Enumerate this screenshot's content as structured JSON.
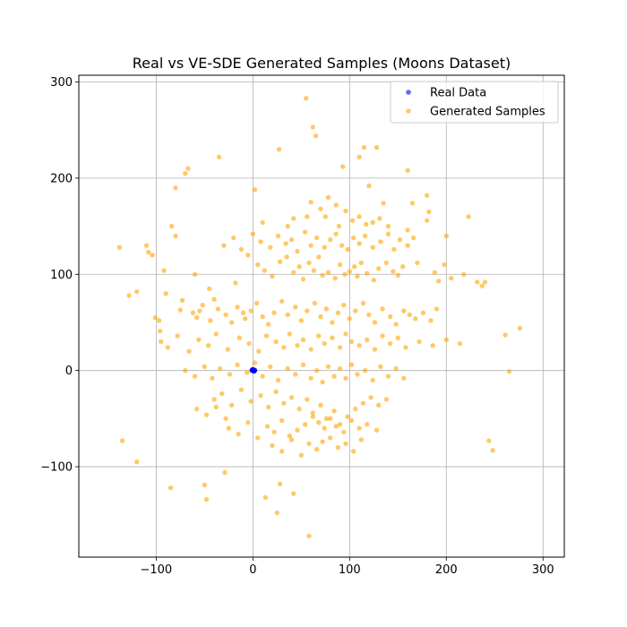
{
  "chart_data": {
    "type": "scatter",
    "title": "Real vs VE-SDE Generated Samples (Moons Dataset)",
    "xlabel": "",
    "ylabel": "",
    "xlim": [
      -180,
      322
    ],
    "ylim": [
      -194,
      307
    ],
    "xticks": [
      -100,
      0,
      100,
      200,
      300
    ],
    "yticks": [
      -100,
      0,
      100,
      200,
      300
    ],
    "xtick_labels": [
      "−100",
      "0",
      "100",
      "200",
      "300"
    ],
    "ytick_labels": [
      "−100",
      "0",
      "100",
      "200",
      "300"
    ],
    "grid": true,
    "legend_position": "top-right",
    "series": [
      {
        "name": "Real Data",
        "color": "#0000ff",
        "opacity": 0.6,
        "marker": "circle",
        "x": [
          -0.9,
          -0.6,
          -0.3,
          0.0,
          0.3,
          0.6,
          0.9,
          0.2,
          0.5,
          0.8,
          1.1,
          1.4,
          1.7,
          1.9,
          -1.0,
          1.0,
          0.5,
          1.5,
          -0.5,
          2.0
        ],
        "y": [
          0.4,
          0.8,
          0.95,
          1.0,
          0.95,
          0.8,
          0.4,
          -0.1,
          -0.3,
          -0.45,
          -0.5,
          -0.45,
          -0.3,
          0.2,
          0.0,
          0.0,
          0.85,
          -0.4,
          0.87,
          0.5
        ]
      },
      {
        "name": "Generated Samples",
        "color": "#ffa500",
        "opacity": 0.6,
        "marker": "circle",
        "x": [
          55,
          62,
          65,
          128,
          110,
          115,
          -35,
          27,
          93,
          -67,
          -70,
          -80,
          2,
          120,
          160,
          165,
          180,
          135,
          182,
          223,
          240,
          276,
          261,
          265,
          248,
          244,
          -138,
          -135,
          -97,
          -96,
          -101,
          58,
          42,
          -85,
          -50,
          -48,
          -29,
          13,
          25,
          28,
          -120,
          -110,
          -108,
          -92,
          -90,
          -75,
          -73,
          -60,
          -45,
          -40,
          -55,
          -18,
          -10,
          -5,
          5,
          12,
          20,
          28,
          35,
          42,
          48,
          52,
          58,
          63,
          68,
          72,
          78,
          85,
          90,
          95,
          100,
          105,
          108,
          112,
          118,
          125,
          130,
          138,
          145,
          150,
          155,
          170,
          188,
          192,
          198,
          205,
          218,
          232,
          237,
          -62,
          -58,
          -52,
          -44,
          -36,
          -28,
          -22,
          -16,
          -8,
          -2,
          4,
          10,
          16,
          22,
          30,
          36,
          44,
          50,
          56,
          64,
          70,
          76,
          82,
          88,
          94,
          100,
          106,
          114,
          120,
          126,
          134,
          142,
          148,
          156,
          162,
          168,
          176,
          184,
          190,
          -30,
          -20,
          -12,
          0,
          8,
          18,
          26,
          34,
          40,
          46,
          54,
          60,
          66,
          74,
          80,
          86,
          92,
          98,
          104,
          110,
          116,
          124,
          132,
          140,
          146,
          152,
          160,
          166,
          -95,
          -88,
          -78,
          -66,
          -56,
          -46,
          -38,
          -26,
          -14,
          -4,
          6,
          14,
          24,
          32,
          38,
          46,
          52,
          60,
          68,
          74,
          82,
          90,
          96,
          102,
          110,
          118,
          126,
          134,
          142,
          150,
          158,
          172,
          186,
          200,
          214,
          -70,
          -60,
          -50,
          -42,
          -34,
          -24,
          -16,
          -6,
          2,
          10,
          18,
          26,
          36,
          44,
          52,
          60,
          66,
          72,
          78,
          84,
          90,
          96,
          102,
          108,
          116,
          124,
          132,
          140,
          148,
          156,
          -40,
          -32,
          -22,
          -12,
          -2,
          8,
          16,
          24,
          32,
          40,
          48,
          56,
          62,
          70,
          76,
          84,
          90,
          98,
          106,
          114,
          122,
          130,
          138,
          -25,
          -15,
          -5,
          5,
          15,
          22,
          30,
          38,
          46,
          54,
          62,
          68,
          74,
          80,
          86,
          94,
          102,
          110,
          118,
          128,
          20,
          30,
          40,
          50,
          58,
          66,
          72,
          80,
          88,
          96,
          104,
          112,
          -58,
          -48,
          -38,
          -28,
          60,
          70,
          78,
          86,
          96,
          110,
          124,
          140,
          160,
          180,
          200,
          -128,
          -120,
          -104,
          -84,
          -80,
          10,
          36,
          56,
          42,
          75,
          89,
          103,
          117,
          131
        ],
        "y": [
          283,
          253,
          244,
          232,
          222,
          232,
          222,
          230,
          212,
          210,
          205,
          190,
          188,
          192,
          208,
          174,
          182,
          174,
          165,
          160,
          92,
          44,
          37,
          -1,
          -83,
          -73,
          128,
          -73,
          52,
          41,
          55,
          -172,
          -128,
          -122,
          -119,
          -134,
          -106,
          -132,
          -148,
          -118,
          -95,
          130,
          123,
          104,
          80,
          63,
          73,
          100,
          85,
          74,
          62,
          91,
          60,
          120,
          110,
          104,
          98,
          113,
          118,
          102,
          108,
          95,
          112,
          104,
          118,
          99,
          102,
          96,
          110,
          100,
          103,
          108,
          98,
          112,
          101,
          94,
          106,
          112,
          103,
          99,
          108,
          112,
          102,
          93,
          110,
          96,
          100,
          92,
          88,
          60,
          55,
          68,
          52,
          64,
          58,
          50,
          66,
          54,
          62,
          70,
          56,
          48,
          60,
          72,
          58,
          66,
          52,
          62,
          70,
          56,
          64,
          50,
          60,
          68,
          54,
          62,
          70,
          58,
          50,
          64,
          56,
          48,
          62,
          58,
          54,
          60,
          52,
          64,
          130,
          138,
          126,
          142,
          134,
          128,
          140,
          132,
          136,
          124,
          144,
          130,
          138,
          128,
          136,
          142,
          130,
          126,
          138,
          132,
          140,
          128,
          134,
          142,
          126,
          136,
          130,
          138,
          30,
          24,
          36,
          20,
          32,
          26,
          38,
          22,
          34,
          28,
          20,
          36,
          30,
          24,
          38,
          26,
          32,
          22,
          36,
          28,
          34,
          24,
          38,
          30,
          26,
          32,
          22,
          36,
          28,
          34,
          24,
          30,
          26,
          32,
          28,
          0,
          -6,
          4,
          -8,
          2,
          -4,
          6,
          -2,
          8,
          -6,
          4,
          -10,
          2,
          -4,
          6,
          -8,
          0,
          -12,
          4,
          -6,
          2,
          -8,
          6,
          -4,
          0,
          -10,
          4,
          -6,
          2,
          -8,
          -30,
          -24,
          -36,
          -20,
          -32,
          -26,
          -38,
          -22,
          -34,
          -28,
          -40,
          -30,
          -44,
          -36,
          -50,
          -42,
          -56,
          -48,
          -40,
          -34,
          -28,
          -36,
          -30,
          -60,
          -66,
          -54,
          -70,
          -58,
          -64,
          -52,
          -68,
          -62,
          -56,
          -48,
          -54,
          -60,
          -50,
          -58,
          -64,
          -52,
          -60,
          -56,
          -62,
          -78,
          -84,
          -72,
          -88,
          -76,
          -82,
          -74,
          -70,
          -80,
          -76,
          -84,
          -72,
          -40,
          -46,
          -38,
          -50,
          175,
          168,
          180,
          172,
          166,
          160,
          154,
          150,
          146,
          156,
          140,
          78,
          82,
          120,
          150,
          140,
          154,
          150,
          160,
          158,
          160,
          150,
          156,
          152,
          158
        ]
      }
    ]
  }
}
